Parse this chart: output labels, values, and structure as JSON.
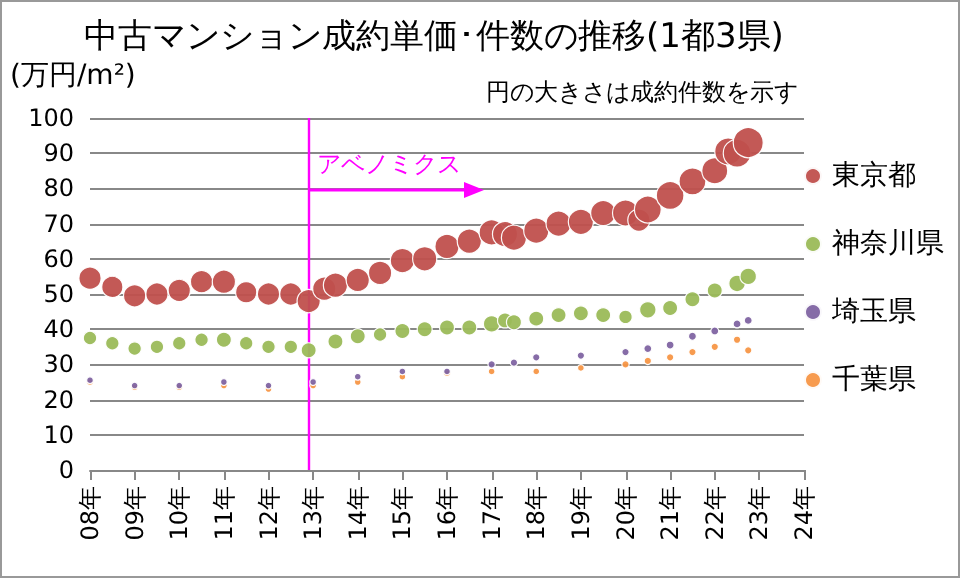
{
  "chart_data": {
    "type": "bubble",
    "title": "中古マンション成約単価･件数の推移(1都3県)",
    "ylabel": "(万円/m²)",
    "annotations": [
      "円の大きさは成約件数を示す"
    ],
    "xlim": [
      8,
      24
    ],
    "xticks": [
      {
        "value": 8,
        "label": "08年"
      },
      {
        "value": 9,
        "label": "09年"
      },
      {
        "value": 10,
        "label": "10年"
      },
      {
        "value": 11,
        "label": "11年"
      },
      {
        "value": 12,
        "label": "12年"
      },
      {
        "value": 13,
        "label": "13年"
      },
      {
        "value": 14,
        "label": "14年"
      },
      {
        "value": 15,
        "label": "15年"
      },
      {
        "value": 16,
        "label": "16年"
      },
      {
        "value": 17,
        "label": "17年"
      },
      {
        "value": 18,
        "label": "18年"
      },
      {
        "value": 19,
        "label": "19年"
      },
      {
        "value": 20,
        "label": "20年"
      },
      {
        "value": 21,
        "label": "21年"
      },
      {
        "value": 22,
        "label": "22年"
      },
      {
        "value": 23,
        "label": "23年"
      },
      {
        "value": 24,
        "label": "24年"
      }
    ],
    "ylim": [
      0,
      100
    ],
    "yticks": [
      0,
      10,
      20,
      30,
      40,
      50,
      60,
      70,
      80,
      90,
      100
    ],
    "grid": "y",
    "legend": "right",
    "marker": "circle",
    "ref_lines": [
      {
        "axis": "x",
        "value": 12.9,
        "label": "アベノミクス",
        "color": "#ff00ff"
      }
    ],
    "series": [
      {
        "name": "東京都",
        "color": "#c0504d",
        "x": [
          8,
          8.5,
          9,
          9.5,
          10,
          10.5,
          11,
          11.5,
          12,
          12.5,
          12.9,
          13.25,
          13.5,
          14,
          14.5,
          15,
          15.5,
          16,
          16.5,
          17,
          17.3,
          17.5,
          18,
          18.5,
          19,
          19.5,
          20,
          20.3,
          20.5,
          21,
          21.5,
          22,
          22.3,
          22.5,
          22.75
        ],
        "values": [
          54.5,
          52,
          49.5,
          50,
          51,
          53.5,
          53.5,
          50.5,
          50,
          50,
          48,
          51.5,
          52.5,
          54,
          56,
          59.5,
          60,
          63.5,
          65,
          67.5,
          67,
          66,
          68,
          70,
          70.5,
          73,
          73,
          71,
          74,
          78,
          82,
          85,
          90.5,
          90,
          93
        ],
        "sizes": [
          0.55,
          0.5,
          0.55,
          0.55,
          0.55,
          0.55,
          0.6,
          0.5,
          0.55,
          0.55,
          0.6,
          0.6,
          0.65,
          0.6,
          0.6,
          0.65,
          0.65,
          0.65,
          0.65,
          0.7,
          0.7,
          0.7,
          0.7,
          0.7,
          0.7,
          0.7,
          0.75,
          0.55,
          0.8,
          0.85,
          0.8,
          0.75,
          0.8,
          0.85,
          1
        ]
      },
      {
        "name": "神奈川県",
        "color": "#9bbb59",
        "x": [
          8,
          8.5,
          9,
          9.5,
          10,
          10.5,
          11,
          11.5,
          12,
          12.5,
          12.9,
          13.5,
          14,
          14.5,
          15,
          15.5,
          16,
          16.5,
          17,
          17.3,
          17.5,
          18,
          18.5,
          19,
          19.5,
          20,
          20.5,
          21,
          21.5,
          22,
          22.5,
          22.75
        ],
        "values": [
          37.5,
          36,
          34.5,
          35,
          36,
          37,
          37,
          36,
          35,
          35,
          34,
          36.5,
          38,
          38.5,
          39.5,
          40,
          40.5,
          40.5,
          41.5,
          42.5,
          42,
          43,
          44,
          44.5,
          44,
          43.5,
          45.5,
          46,
          48.5,
          51,
          53,
          55
        ],
        "sizes": [
          0.2,
          0.2,
          0.2,
          0.2,
          0.2,
          0.2,
          0.25,
          0.2,
          0.2,
          0.2,
          0.25,
          0.25,
          0.25,
          0.2,
          0.25,
          0.25,
          0.25,
          0.25,
          0.3,
          0.25,
          0.25,
          0.25,
          0.25,
          0.25,
          0.25,
          0.2,
          0.3,
          0.25,
          0.25,
          0.25,
          0.3,
          0.3
        ]
      },
      {
        "name": "埼玉県",
        "color": "#8064a2",
        "x": [
          8,
          9,
          10,
          11,
          12,
          13,
          14,
          15,
          16,
          17,
          17.5,
          18,
          19,
          20,
          20.5,
          21,
          21.5,
          22,
          22.5,
          22.75
        ],
        "values": [
          25.5,
          24,
          24,
          25,
          24,
          25,
          26.5,
          28,
          28,
          30,
          30.5,
          32,
          32.5,
          33.5,
          34.5,
          35.5,
          38,
          39.5,
          41.5,
          42.5
        ],
        "sizes": [
          0.05,
          0.05,
          0.05,
          0.05,
          0.05,
          0.05,
          0.05,
          0.05,
          0.05,
          0.06,
          0.06,
          0.06,
          0.06,
          0.06,
          0.07,
          0.07,
          0.07,
          0.07,
          0.07,
          0.07
        ]
      },
      {
        "name": "千葉県",
        "color": "#f79646",
        "x": [
          8,
          9,
          10,
          11,
          12,
          13,
          14,
          15,
          16,
          17,
          18,
          19,
          20,
          20.5,
          21,
          21.5,
          22,
          22.5,
          22.75
        ],
        "values": [
          25,
          23.5,
          23.5,
          24,
          23,
          24,
          25,
          26.5,
          27.5,
          28,
          28,
          29,
          30,
          31,
          32,
          33.5,
          35,
          37,
          34
        ],
        "sizes": [
          0.05,
          0.05,
          0.05,
          0.05,
          0.05,
          0.05,
          0.05,
          0.05,
          0.05,
          0.05,
          0.05,
          0.05,
          0.06,
          0.06,
          0.06,
          0.06,
          0.06,
          0.06,
          0.06
        ]
      }
    ]
  }
}
